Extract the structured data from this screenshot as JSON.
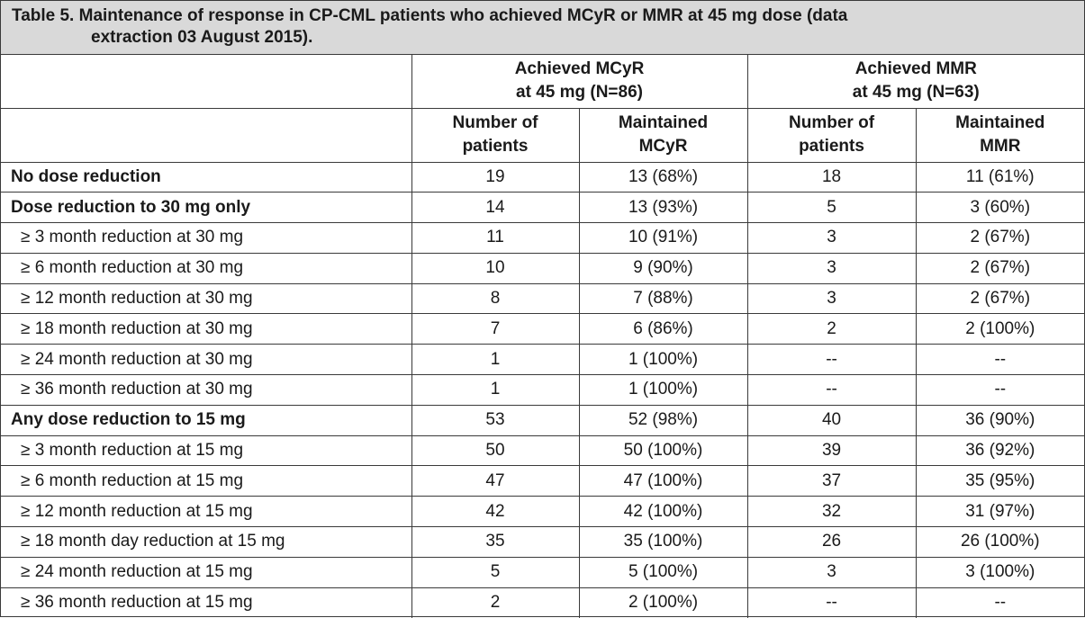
{
  "caption": {
    "line1": "Table 5. Maintenance of response in CP-CML patients who achieved MCyR or MMR at 45 mg dose (data",
    "line2": "extraction 03 August 2015)."
  },
  "header": {
    "group_mcyr_line1": "Achieved MCyR",
    "group_mcyr_line2": "at 45 mg (N=86)",
    "group_mmr_line1": "Achieved MMR",
    "group_mmr_line2": "at 45 mg (N=63)",
    "col1_line1": "Number of",
    "col1_line2": "patients",
    "col2_line1": "Maintained",
    "col2_line2": "MCyR",
    "col3_line1": "Number of",
    "col3_line2": "patients",
    "col4_line1": "Maintained",
    "col4_line2": "MMR"
  },
  "rows": [
    {
      "label": "No dose reduction",
      "bold": true,
      "indent": false,
      "n_mcyr": "19",
      "maint_mcyr": "13 (68%)",
      "n_mmr": "18",
      "maint_mmr": "11 (61%)"
    },
    {
      "label": "Dose reduction to 30 mg only",
      "bold": true,
      "indent": false,
      "n_mcyr": "14",
      "maint_mcyr": "13 (93%)",
      "n_mmr": "5",
      "maint_mmr": "3 (60%)"
    },
    {
      "label": "≥ 3 month reduction at 30 mg",
      "bold": false,
      "indent": true,
      "n_mcyr": "11",
      "maint_mcyr": "10 (91%)",
      "n_mmr": "3",
      "maint_mmr": "2 (67%)"
    },
    {
      "label": "≥ 6 month reduction at 30 mg",
      "bold": false,
      "indent": true,
      "n_mcyr": "10",
      "maint_mcyr": "9 (90%)",
      "n_mmr": "3",
      "maint_mmr": "2 (67%)"
    },
    {
      "label": "≥ 12 month reduction at 30 mg",
      "bold": false,
      "indent": true,
      "n_mcyr": "8",
      "maint_mcyr": "7 (88%)",
      "n_mmr": "3",
      "maint_mmr": "2 (67%)"
    },
    {
      "label": "≥ 18 month reduction at 30 mg",
      "bold": false,
      "indent": true,
      "n_mcyr": "7",
      "maint_mcyr": "6 (86%)",
      "n_mmr": "2",
      "maint_mmr": "2 (100%)"
    },
    {
      "label": "≥ 24 month reduction at 30 mg",
      "bold": false,
      "indent": true,
      "n_mcyr": "1",
      "maint_mcyr": "1 (100%)",
      "n_mmr": "--",
      "maint_mmr": "--"
    },
    {
      "label": "≥ 36 month reduction at 30 mg",
      "bold": false,
      "indent": true,
      "n_mcyr": "1",
      "maint_mcyr": "1 (100%)",
      "n_mmr": "--",
      "maint_mmr": "--"
    },
    {
      "label": "Any dose reduction to 15 mg",
      "bold": true,
      "indent": false,
      "n_mcyr": "53",
      "maint_mcyr": "52 (98%)",
      "n_mmr": "40",
      "maint_mmr": "36 (90%)"
    },
    {
      "label": "≥ 3 month reduction at 15 mg",
      "bold": false,
      "indent": true,
      "n_mcyr": "50",
      "maint_mcyr": "50 (100%)",
      "n_mmr": "39",
      "maint_mmr": "36 (92%)"
    },
    {
      "label": "≥ 6 month reduction at 15 mg",
      "bold": false,
      "indent": true,
      "n_mcyr": "47",
      "maint_mcyr": "47 (100%)",
      "n_mmr": "37",
      "maint_mmr": "35 (95%)"
    },
    {
      "label": "≥ 12 month reduction at 15 mg",
      "bold": false,
      "indent": true,
      "n_mcyr": "42",
      "maint_mcyr": "42 (100%)",
      "n_mmr": "32",
      "maint_mmr": "31 (97%)"
    },
    {
      "label": "≥ 18 month day reduction at 15 mg",
      "bold": false,
      "indent": true,
      "n_mcyr": "35",
      "maint_mcyr": "35 (100%)",
      "n_mmr": "26",
      "maint_mmr": "26 (100%)"
    },
    {
      "label": "≥ 24 month reduction at 15 mg",
      "bold": false,
      "indent": true,
      "n_mcyr": "5",
      "maint_mcyr": "5 (100%)",
      "n_mmr": "3",
      "maint_mmr": "3 (100%)"
    },
    {
      "label": "≥ 36 month reduction at 15 mg",
      "bold": false,
      "indent": true,
      "n_mcyr": "2",
      "maint_mcyr": "2 (100%)",
      "n_mmr": "--",
      "maint_mmr": "--"
    }
  ],
  "colors": {
    "caption_background": "#d9d9d9",
    "border": "#3a3a3a",
    "text": "#1a1a1a"
  }
}
